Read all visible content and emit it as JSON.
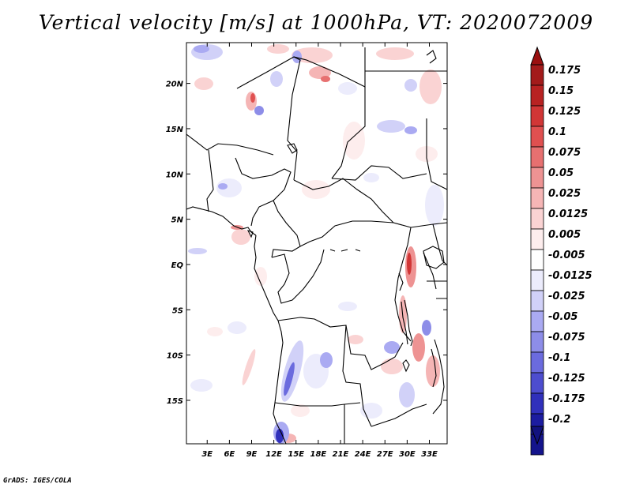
{
  "title": "Vertical velocity [m/s] at 1000hPa, VT: 2020072009",
  "credit": "GrADS: IGES/COLA",
  "map": {
    "lon_labels": [
      "3E",
      "6E",
      "9E",
      "12E",
      "15E",
      "18E",
      "21E",
      "24E",
      "27E",
      "30E",
      "33E"
    ],
    "lon_values": [
      3,
      6,
      9,
      12,
      15,
      18,
      21,
      24,
      27,
      30,
      33
    ],
    "lat_labels": [
      "20N",
      "15N",
      "10N",
      "5N",
      "EQ",
      "5S",
      "10S",
      "15S"
    ],
    "lat_values": [
      20,
      15,
      10,
      5,
      0,
      -5,
      -10,
      -15
    ],
    "lon_range": [
      0.2,
      35.4
    ],
    "lat_range": [
      -19.8,
      24.5
    ],
    "border_color": "#000000"
  },
  "colorbar": {
    "labels": [
      "0.175",
      "0.15",
      "0.125",
      "0.1",
      "0.075",
      "0.05",
      "0.025",
      "0.0125",
      "0.005",
      "-0.005",
      "-0.0125",
      "-0.025",
      "-0.05",
      "-0.075",
      "-0.1",
      "-0.125",
      "-0.175",
      "-0.2"
    ],
    "colors": [
      "#a31b1b",
      "#b82222",
      "#d13636",
      "#e05050",
      "#e77070",
      "#ee9393",
      "#f5b5b5",
      "#fad3d3",
      "#fdeded",
      "#ffffff",
      "#ececfc",
      "#d1d1f8",
      "#aaaaf2",
      "#8d8de8",
      "#6b6bde",
      "#4d4dcf",
      "#3030bb",
      "#1c1ca0",
      "#14148c"
    ],
    "top_color": "#9a1010",
    "bottom_color": "#12127f"
  }
}
